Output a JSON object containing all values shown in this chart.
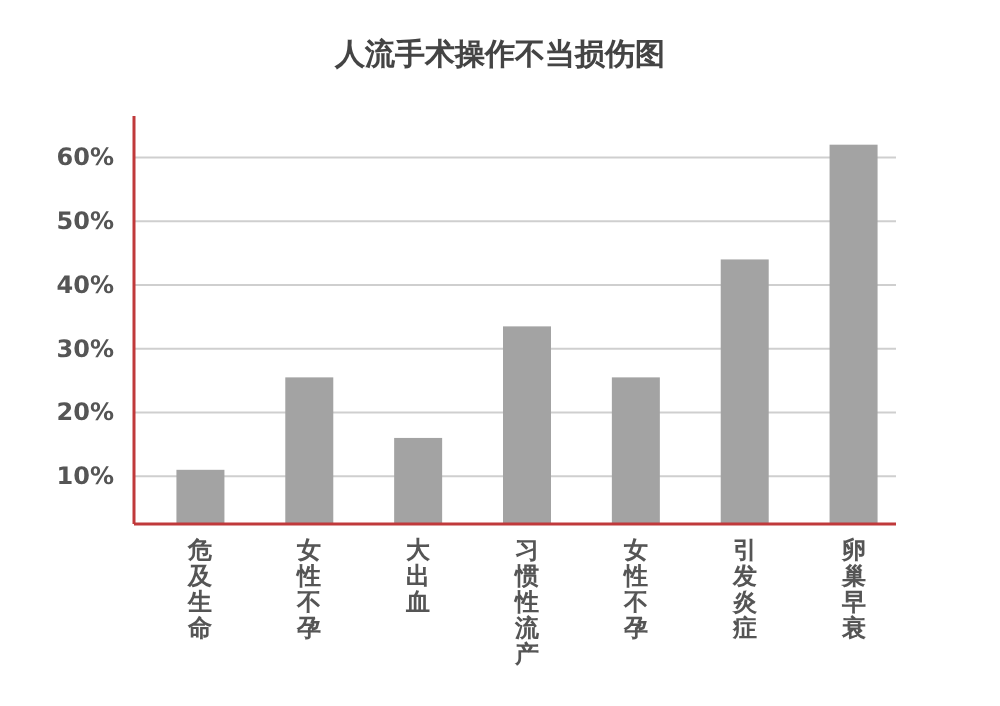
{
  "chart_data": {
    "type": "bar",
    "title": "人流手术操作不当损伤图",
    "categories": [
      "危及生命",
      "女性不孕",
      "大出血",
      "习惯性流产",
      "女性不孕",
      "引发炎症",
      "卵巢早衰"
    ],
    "values": [
      11,
      25.5,
      16,
      33.5,
      25.5,
      44,
      62
    ],
    "color": "#a3a3a3",
    "ylim": [
      2.5,
      66.5
    ],
    "yticks": [
      {
        "value": 10,
        "label": "10%"
      },
      {
        "value": 20,
        "label": "20%"
      },
      {
        "value": 30,
        "label": "30%"
      },
      {
        "value": 40,
        "label": "40%"
      },
      {
        "value": 50,
        "label": "50%"
      },
      {
        "value": 60,
        "label": "60%"
      }
    ],
    "grid": "y"
  }
}
